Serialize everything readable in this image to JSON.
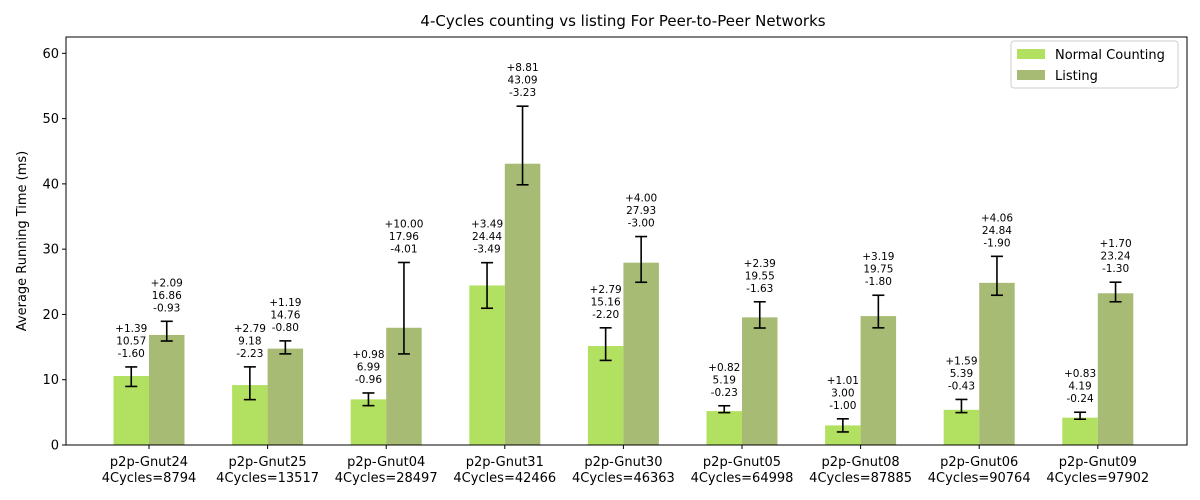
{
  "chart_data": {
    "type": "bar",
    "title": "4-Cycles counting vs listing For Peer-to-Peer Networks",
    "ylabel": "Average Running Time (ms)",
    "xlabel": "",
    "ylim": [
      0,
      62.5
    ],
    "yticks": [
      0,
      10,
      20,
      30,
      40,
      50,
      60
    ],
    "legend_position": "top-right",
    "categories": [
      [
        "p2p-Gnut24",
        "4Cycles=8794"
      ],
      [
        "p2p-Gnut25",
        "4Cycles=13517"
      ],
      [
        "p2p-Gnut04",
        "4Cycles=28497"
      ],
      [
        "p2p-Gnut31",
        "4Cycles=42466"
      ],
      [
        "p2p-Gnut30",
        "4Cycles=46363"
      ],
      [
        "p2p-Gnut05",
        "4Cycles=64998"
      ],
      [
        "p2p-Gnut08",
        "4Cycles=87885"
      ],
      [
        "p2p-Gnut06",
        "4Cycles=90764"
      ],
      [
        "p2p-Gnut09",
        "4Cycles=97902"
      ]
    ],
    "series": [
      {
        "name": "Normal Counting",
        "color": "#b2e061",
        "values": [
          10.57,
          9.18,
          6.99,
          24.44,
          15.16,
          5.19,
          3.0,
          5.39,
          4.19
        ],
        "err_plus": [
          1.39,
          2.79,
          0.98,
          3.49,
          2.79,
          0.82,
          1.01,
          1.59,
          0.83
        ],
        "err_minus": [
          1.6,
          2.23,
          0.96,
          3.49,
          2.2,
          0.23,
          1.0,
          0.43,
          0.24
        ],
        "labels": [
          [
            "+1.39",
            "10.57",
            "-1.60"
          ],
          [
            "+2.79",
            "9.18",
            "-2.23"
          ],
          [
            "+0.98",
            "6.99",
            "-0.96"
          ],
          [
            "+3.49",
            "24.44",
            "-3.49"
          ],
          [
            "+2.79",
            "15.16",
            "-2.20"
          ],
          [
            "+0.82",
            "5.19",
            "-0.23"
          ],
          [
            "+1.01",
            "3.00",
            "-1.00"
          ],
          [
            "+1.59",
            "5.39",
            "-0.43"
          ],
          [
            "+0.83",
            "4.19",
            "-0.24"
          ]
        ]
      },
      {
        "name": "Listing",
        "color": "#a8bb75",
        "values": [
          16.86,
          14.76,
          17.96,
          43.09,
          27.93,
          19.55,
          19.75,
          24.84,
          23.24
        ],
        "err_plus": [
          2.09,
          1.19,
          10.0,
          8.81,
          4.0,
          2.39,
          3.19,
          4.06,
          1.7
        ],
        "err_minus": [
          0.93,
          0.8,
          4.01,
          3.23,
          3.0,
          1.63,
          1.8,
          1.9,
          1.3
        ],
        "labels": [
          [
            "+2.09",
            "16.86",
            "-0.93"
          ],
          [
            "+1.19",
            "14.76",
            "-0.80"
          ],
          [
            "+10.00",
            "17.96",
            "-4.01"
          ],
          [
            "+8.81",
            "43.09",
            "-3.23"
          ],
          [
            "+4.00",
            "27.93",
            "-3.00"
          ],
          [
            "+2.39",
            "19.55",
            "-1.63"
          ],
          [
            "+3.19",
            "19.75",
            "-1.80"
          ],
          [
            "+4.06",
            "24.84",
            "-1.90"
          ],
          [
            "+1.70",
            "23.24",
            "-1.30"
          ]
        ]
      }
    ]
  }
}
